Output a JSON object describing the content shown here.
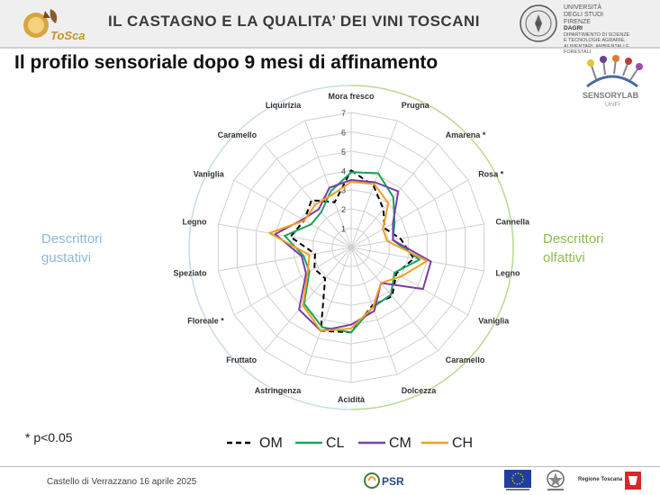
{
  "header": {
    "title": "IL CASTAGNO E LA QUALITA’ DEI VINI TOSCANI",
    "logo_text": "ToSca",
    "university": [
      "UNIVERSITÀ",
      "DEGLI STUDI",
      "FIRENZE"
    ],
    "dept_abbr": "DAGRI",
    "dept_lines": [
      "DIPARTIMENTO DI SCIENZE",
      "E TECNOLOGIE AGRARIE,",
      "ALIMENTARI, AMBIENTALI E FORESTALI"
    ]
  },
  "slide": {
    "title": "Il profilo sensoriale dopo 9 mesi di affinamento",
    "left_group": [
      "Descrittori",
      "gustativi"
    ],
    "right_group": [
      "Descrittori",
      "olfattivi"
    ],
    "significance_note": "* p<0.05"
  },
  "sensory_lab": {
    "name": "SENSORYLAB",
    "sub": "UniFi"
  },
  "chart_data": {
    "type": "radar",
    "axes": [
      "Mora fresco",
      "Prugna",
      "Amarena",
      "Rosa",
      "Cannella",
      "Legno",
      "Vaniglia",
      "Caramello",
      "Dolcezza",
      "Acidità",
      "Astringenza",
      "Fruttato",
      "Floreale",
      "Speziato",
      "Legno",
      "Vaniglia",
      "Caramello",
      "Liquirizia"
    ],
    "significant_axes": [
      2,
      3,
      12
    ],
    "rlim": [
      0,
      7
    ],
    "tick_labels": [
      "1",
      "2",
      "3",
      "4",
      "5",
      "6",
      "7"
    ],
    "grid": true,
    "series": [
      {
        "name": "OM",
        "color": "#000000",
        "dash": true,
        "values": [
          4.0,
          3.4,
          2.6,
          2.0,
          2.6,
          3.3,
          2.7,
          3.3,
          3.2,
          4.4,
          4.6,
          2.1,
          2.2,
          1.9,
          3.2,
          2.8,
          3.2,
          2.5
        ]
      },
      {
        "name": "CL",
        "color": "#1aa35a",
        "dash": false,
        "values": [
          3.9,
          4.1,
          3.4,
          2.6,
          2.2,
          3.6,
          2.6,
          3.2,
          3.3,
          4.4,
          4.4,
          3.8,
          2.5,
          2.5,
          3.5,
          2.4,
          2.4,
          3.1
        ]
      },
      {
        "name": "CM",
        "color": "#7a3dab",
        "dash": false,
        "values": [
          3.5,
          3.6,
          3.8,
          2.5,
          2.2,
          4.2,
          4.3,
          2.4,
          3.5,
          4.0,
          4.6,
          4.2,
          2.7,
          2.6,
          4.0,
          2.9,
          2.6,
          3.3
        ]
      },
      {
        "name": "CH",
        "color": "#f0a020",
        "dash": false,
        "values": [
          3.4,
          3.5,
          3.0,
          1.9,
          1.9,
          4.0,
          3.0,
          2.4,
          3.3,
          4.2,
          4.6,
          3.9,
          2.6,
          2.2,
          4.3,
          2.8,
          2.9,
          2.9
        ]
      }
    ]
  },
  "footer": {
    "event": "Castello di Verrazzano  16 aprile 2025",
    "psr_label": "PSR",
    "region_label": "Regione Toscana"
  }
}
